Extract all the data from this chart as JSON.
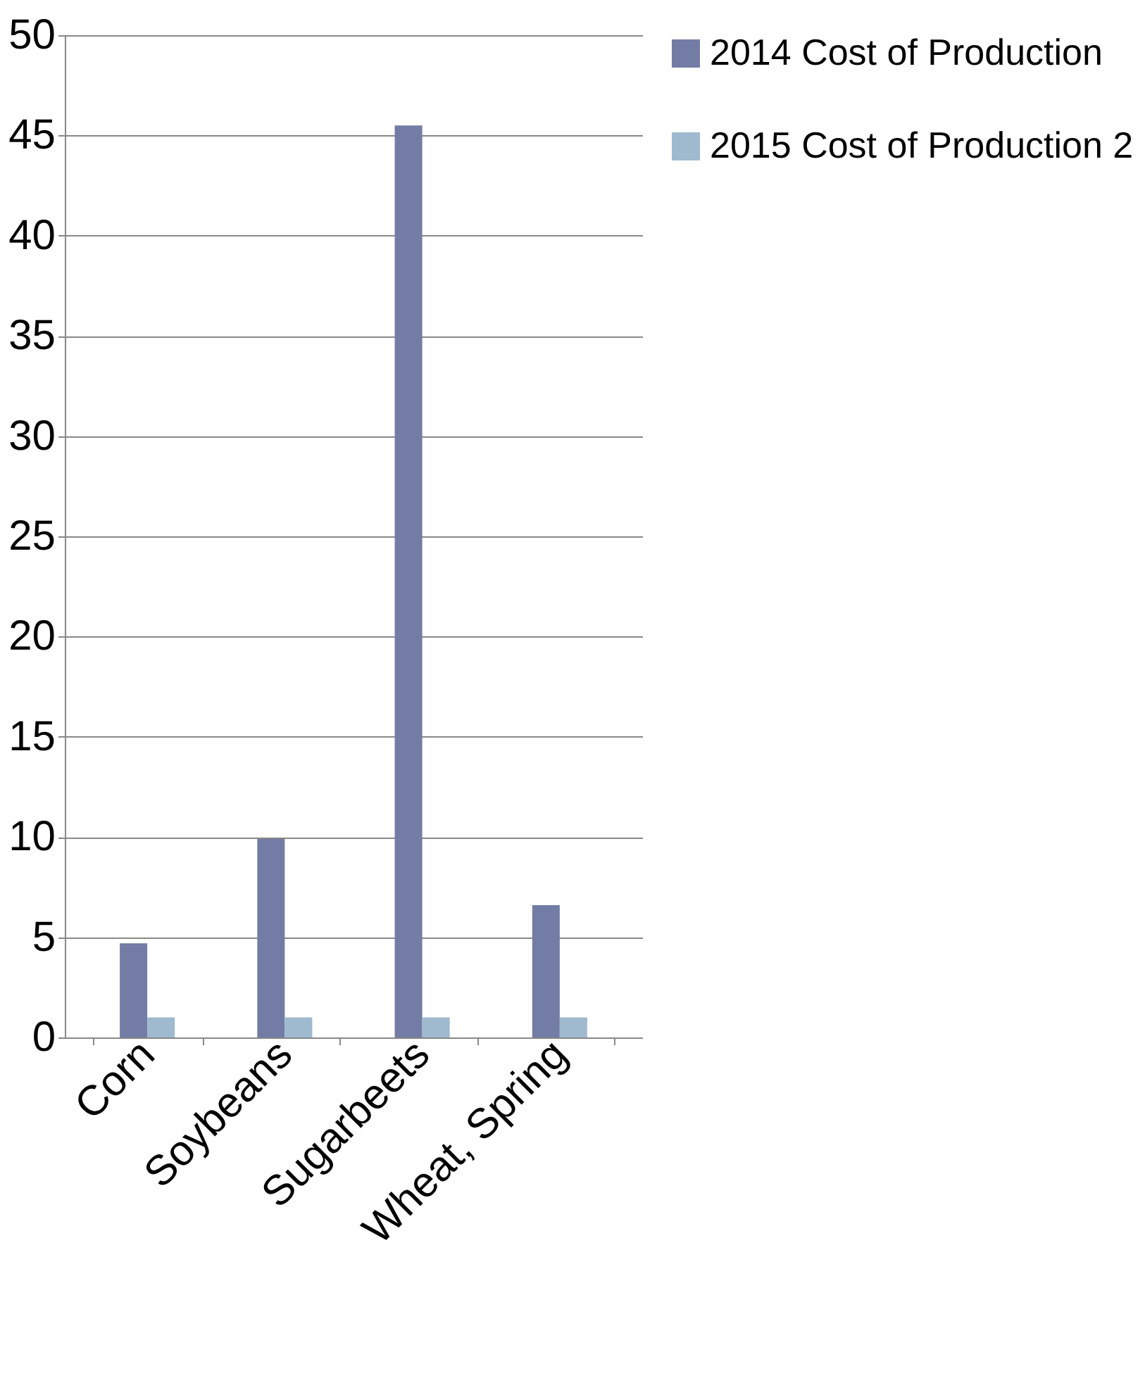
{
  "chart_data": {
    "type": "bar",
    "categories": [
      "Corn",
      "Soybeans",
      "Sugarbeets",
      "Wheat, Spring"
    ],
    "series": [
      {
        "name": "2014 Cost of Production",
        "color": "#737ca5",
        "values": [
          4.7,
          9.9,
          45.5,
          6.6
        ]
      },
      {
        "name": "2015 Cost of Production 2",
        "color": "#9fb9cf",
        "values": [
          1,
          1,
          1,
          1
        ]
      }
    ],
    "ylim": [
      0,
      50
    ],
    "yticks": [
      0,
      5,
      10,
      15,
      20,
      25,
      30,
      35,
      40,
      45,
      50
    ],
    "grid": "y",
    "legend": "right"
  }
}
